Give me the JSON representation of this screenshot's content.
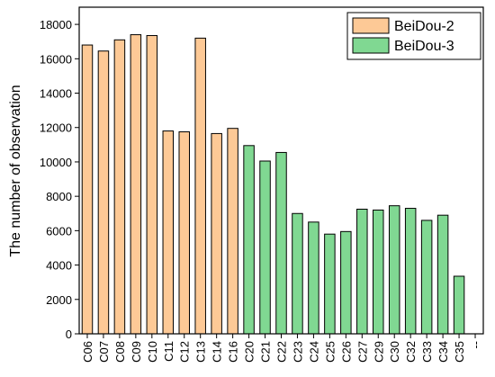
{
  "chart_data": {
    "type": "bar",
    "y_label": "The number of observation",
    "categories": [
      "C06",
      "C07",
      "C08",
      "C09",
      "C10",
      "C11",
      "C12",
      "C13",
      "C14",
      "C16",
      "C20",
      "C21",
      "C22",
      "C23",
      "C24",
      "C25",
      "C26",
      "C27",
      "C29",
      "C30",
      "C32",
      "C33",
      "C34",
      "C35",
      "--"
    ],
    "series": [
      {
        "name": "BeiDou-2",
        "color": "#fdc996",
        "values": [
          16800,
          16450,
          17100,
          17400,
          17350,
          11800,
          11750,
          17200,
          11650,
          11950,
          null,
          null,
          null,
          null,
          null,
          null,
          null,
          null,
          null,
          null,
          null,
          null,
          null,
          null,
          null
        ]
      },
      {
        "name": "BeiDou-3",
        "color": "#80d892",
        "values": [
          null,
          null,
          null,
          null,
          null,
          null,
          null,
          null,
          null,
          null,
          10950,
          10050,
          10550,
          7000,
          6500,
          5800,
          5950,
          7250,
          7200,
          7450,
          7300,
          6600,
          6900,
          3350,
          null
        ]
      }
    ],
    "ylim": [
      0,
      19000
    ],
    "yticks": [
      0,
      2000,
      4000,
      6000,
      8000,
      10000,
      12000,
      14000,
      16000,
      18000
    ],
    "legend": "upper right"
  }
}
